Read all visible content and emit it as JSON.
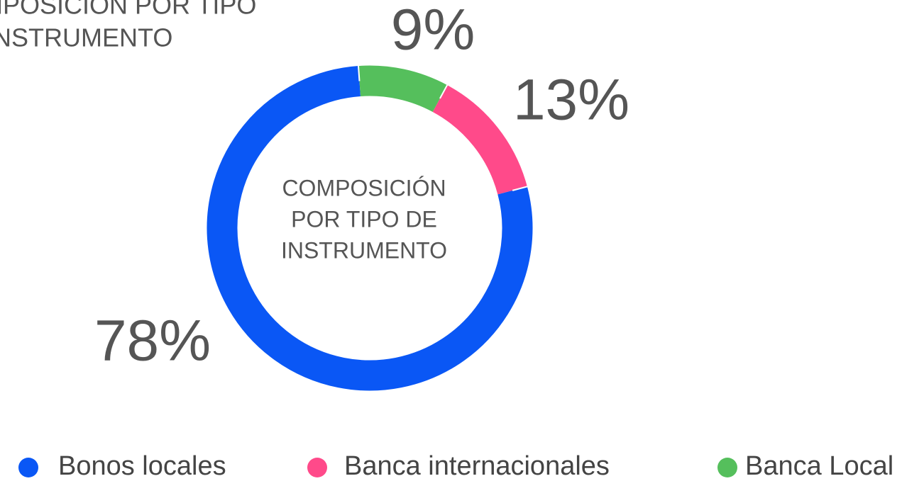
{
  "chart_data": {
    "type": "pie",
    "title": [
      "COMPOSICIÓN POR TIPO",
      "DE INSTRUMENTO"
    ],
    "center_label": [
      "COMPOSICIÓN",
      "POR TIPO DE",
      "INSTRUMENTO"
    ],
    "categories": [
      "Bonos locales",
      "Banca internacionales",
      "Banca Local"
    ],
    "values": [
      78,
      13,
      9
    ],
    "value_labels": [
      "78%",
      "13%",
      "9%"
    ],
    "colors": [
      "#0a57f5",
      "#ff4a8a",
      "#55bf5c"
    ],
    "legend": "bottom"
  }
}
